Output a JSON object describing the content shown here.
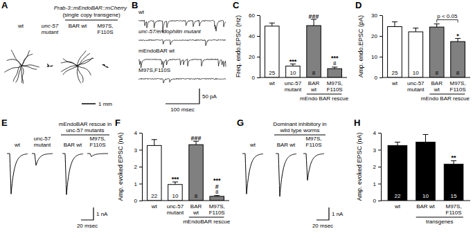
{
  "chart_data": [
    {
      "type": "bar",
      "panel": "C",
      "y_label": "Freq. endo.EPSC (Hz)",
      "categories": [
        "wt",
        "unc-57 mutant",
        "BAR wt",
        "M97S,F110S"
      ],
      "values": [
        49.5,
        11,
        50,
        8.5
      ],
      "errors": [
        3,
        2,
        6,
        1.5
      ],
      "n": [
        25,
        10,
        8,
        8
      ],
      "colors": [
        "#ffffff",
        "#ffffff",
        "#808080",
        "#808080"
      ],
      "ylim": [
        0,
        60
      ],
      "yticks": [
        0,
        20,
        40,
        60
      ],
      "annotations": [
        {
          "index": 1,
          "text": "***"
        },
        {
          "index": 2,
          "text": "###"
        },
        {
          "index": 3,
          "text": "***"
        }
      ],
      "group_label": {
        "text": "mEndo BAR rescue",
        "from": 2,
        "to": 3
      }
    },
    {
      "type": "bar",
      "panel": "D",
      "y_label": "Amp. endo.EPSC (pA)",
      "categories": [
        "wt",
        "unc-57 mutant",
        "BAR wt",
        "M97S,F110S"
      ],
      "values": [
        24.5,
        22,
        24.3,
        17.3
      ],
      "errors": [
        2.3,
        1.8,
        1.5,
        1.5
      ],
      "n": [
        25,
        10,
        8,
        8
      ],
      "colors": [
        "#ffffff",
        "#ffffff",
        "#808080",
        "#808080"
      ],
      "ylim": [
        0,
        30
      ],
      "yticks": [
        0,
        10,
        20,
        30
      ],
      "annotations": [
        {
          "index": 3,
          "text": "*"
        }
      ],
      "bracket": {
        "text": "p < 0.05",
        "from": 2,
        "to": 3
      },
      "group_label": {
        "text": "mEndo BAR rescue",
        "from": 2,
        "to": 3
      }
    },
    {
      "type": "bar",
      "panel": "F",
      "y_label": "Amp. evoked EPSC (nA)",
      "categories": [
        "wt",
        "unc-57 mutant",
        "BAR wt",
        "M97S,F110S"
      ],
      "values": [
        3.25,
        0.95,
        3.3,
        0.25
      ],
      "errors": [
        0.35,
        0.15,
        0.2,
        0.05
      ],
      "n": [
        22,
        10,
        8,
        8
      ],
      "colors": [
        "#ffffff",
        "#ffffff",
        "#808080",
        "#808080"
      ],
      "ylim": [
        0,
        4
      ],
      "yticks": [
        0,
        1,
        2,
        3,
        4
      ],
      "annotations": [
        {
          "index": 1,
          "text": "***"
        },
        {
          "index": 2,
          "text": "###"
        },
        {
          "index": 3,
          "text": "#"
        },
        {
          "index": 3,
          "text": "***"
        }
      ],
      "group_label": {
        "text": "mEndoBAR rescue",
        "from": 2,
        "to": 3
      }
    },
    {
      "type": "bar",
      "panel": "H",
      "y_label": "Amp. evoked EPSC (nA)",
      "categories": [
        "wt",
        "BAR wt",
        "M97S,F110S"
      ],
      "values": [
        3.25,
        3.45,
        2.15
      ],
      "errors": [
        0.2,
        0.45,
        0.2
      ],
      "n": [
        22,
        10,
        15
      ],
      "colors": [
        "#000000",
        "#000000",
        "#000000"
      ],
      "ylim": [
        0,
        4
      ],
      "yticks": [
        0,
        1,
        2,
        3,
        4
      ],
      "annotations": [
        {
          "index": 2,
          "text": "**"
        }
      ],
      "group_label": {
        "text": "transgenes",
        "from": 1,
        "to": 2
      }
    }
  ],
  "illustrations": {
    "A": {
      "panel": "A",
      "labels": [
        "wt",
        "unc-57 mutant",
        "BAR wt",
        "M97S,F110S"
      ],
      "group_label": {
        "text": "Prab-3::mEndoBAR::mCherry",
        "subtext": "(single copy transgene)",
        "from": 2,
        "to": 3
      },
      "scale": {
        "value": 1,
        "label": "1 mm"
      }
    },
    "B": {
      "panel": "B",
      "labels": [
        "wt",
        "unc-57/endophilin mutant",
        "mEndoBAR wt",
        "M97S,F110S"
      ],
      "scale_y": {
        "value": 50,
        "label": "50 pA"
      },
      "scale_x": {
        "value": 100,
        "label": "100 msec"
      }
    },
    "E": {
      "panel": "E",
      "labels": [
        "wt",
        "unc-57 mutant",
        "BAR wt",
        "M97S,F110S"
      ],
      "group_label": {
        "text": "mEndoBAR rescue in unc-57 mutants",
        "from": 2,
        "to": 3
      },
      "scale_y": {
        "value": 1,
        "label": "1 nA"
      },
      "scale_x": {
        "value": 20,
        "label": "20 msec"
      }
    },
    "G": {
      "panel": "G",
      "labels": [
        "wt",
        "BAR wt",
        "M97S,F110S"
      ],
      "group_label": {
        "text": "Dominant inhibitory in wild type worms",
        "from": 1,
        "to": 2
      },
      "scale_y": {
        "value": 1,
        "label": "1 nA"
      },
      "scale_x": {
        "value": 20,
        "label": "20 msec"
      }
    }
  }
}
